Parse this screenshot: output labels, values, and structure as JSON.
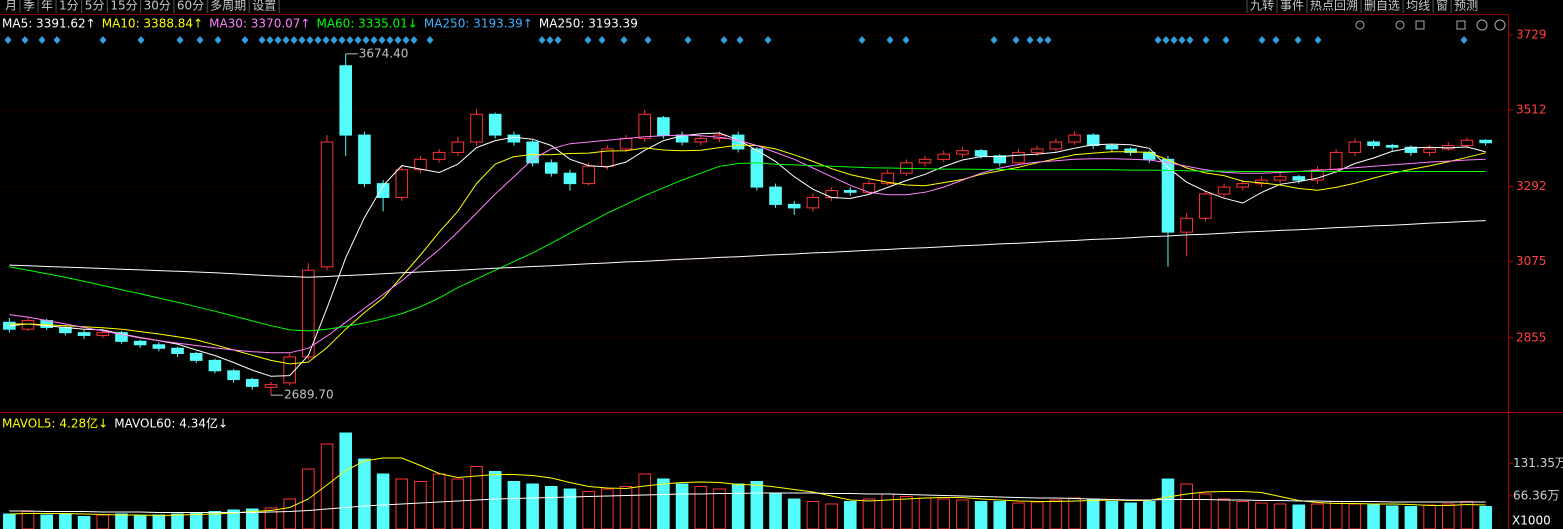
{
  "chart_data": {
    "type": "candlestick",
    "toolbar_left": [
      "月",
      "季",
      "年",
      "1分",
      "5分",
      "15分",
      "30分",
      "60分",
      "多周期",
      "设置"
    ],
    "toolbar_right": [
      "九转",
      "事件",
      "热点回溯",
      "删自选",
      "均线",
      "窗",
      "预测"
    ],
    "legend": [
      {
        "text": "MA5: 3391.62↑",
        "color": "#ffffff"
      },
      {
        "text": "MA10: 3388.84↑",
        "color": "#ffff00"
      },
      {
        "text": "MA30: 3370.07↑",
        "color": "#ff80ff"
      },
      {
        "text": "MA60: 3335.01↓",
        "color": "#00ff00"
      },
      {
        "text": "MA250: 3193.39↑",
        "color": "#40b0ff"
      },
      {
        "text": "MA250: 3193.39",
        "color": "#ffffff"
      }
    ],
    "up_color": "#ff3232",
    "down_color": "#54fcfc",
    "ylim": [
      2644,
      3772
    ],
    "yticks": [
      3729,
      3512,
      3292,
      3075,
      2855
    ],
    "grid": true,
    "annotations": [
      "3674.40",
      "2689.70"
    ],
    "open": [
      2900,
      2880,
      2905,
      2885,
      2870,
      2862,
      2870,
      2845,
      2835,
      2825,
      2810,
      2790,
      2760,
      2735,
      2712,
      2725,
      2800,
      3060,
      3640,
      3440,
      3300,
      3260,
      3340,
      3370,
      3390,
      3420,
      3500,
      3440,
      3420,
      3360,
      3330,
      3300,
      3350,
      3400,
      3430,
      3490,
      3440,
      3420,
      3430,
      3440,
      3400,
      3290,
      3240,
      3230,
      3260,
      3280,
      3275,
      3300,
      3330,
      3360,
      3370,
      3385,
      3395,
      3380,
      3360,
      3390,
      3400,
      3420,
      3440,
      3410,
      3400,
      3390,
      3370,
      3160,
      3200,
      3270,
      3290,
      3300,
      3310,
      3320,
      3310,
      3340,
      3390,
      3420,
      3410,
      3405,
      3390,
      3400,
      3410,
      3425
    ],
    "close": [
      2880,
      2905,
      2885,
      2870,
      2862,
      2870,
      2845,
      2835,
      2825,
      2810,
      2790,
      2760,
      2735,
      2715,
      2720,
      2800,
      3050,
      3420,
      3440,
      3300,
      3260,
      3340,
      3370,
      3390,
      3420,
      3500,
      3440,
      3420,
      3360,
      3330,
      3300,
      3350,
      3400,
      3430,
      3500,
      3440,
      3420,
      3430,
      3440,
      3400,
      3290,
      3240,
      3230,
      3260,
      3280,
      3275,
      3300,
      3330,
      3360,
      3370,
      3385,
      3395,
      3380,
      3360,
      3390,
      3400,
      3420,
      3440,
      3410,
      3400,
      3390,
      3370,
      3160,
      3200,
      3270,
      3290,
      3300,
      3310,
      3320,
      3310,
      3340,
      3390,
      3420,
      3410,
      3405,
      3390,
      3400,
      3410,
      3425,
      3418
    ],
    "high": [
      2912,
      2915,
      2910,
      2892,
      2878,
      2880,
      2875,
      2850,
      2842,
      2830,
      2815,
      2795,
      2765,
      2740,
      2728,
      2810,
      3070,
      3440,
      3674.4,
      3450,
      3310,
      3350,
      3380,
      3400,
      3435,
      3515,
      3505,
      3450,
      3425,
      3370,
      3340,
      3360,
      3410,
      3440,
      3512,
      3495,
      3450,
      3440,
      3450,
      3450,
      3405,
      3300,
      3250,
      3270,
      3290,
      3290,
      3310,
      3340,
      3370,
      3380,
      3395,
      3405,
      3400,
      3385,
      3400,
      3410,
      3430,
      3450,
      3445,
      3415,
      3405,
      3395,
      3380,
      3215,
      3280,
      3300,
      3310,
      3320,
      3330,
      3325,
      3350,
      3400,
      3430,
      3425,
      3415,
      3410,
      3410,
      3420,
      3432,
      3428
    ],
    "low": [
      2870,
      2875,
      2878,
      2862,
      2852,
      2855,
      2838,
      2826,
      2816,
      2800,
      2782,
      2752,
      2726,
      2705,
      2689.7,
      2718,
      2792,
      3050,
      3380,
      3290,
      3220,
      3250,
      3330,
      3360,
      3380,
      3410,
      3430,
      3410,
      3350,
      3320,
      3280,
      3295,
      3340,
      3390,
      3420,
      3430,
      3410,
      3410,
      3420,
      3390,
      3280,
      3230,
      3210,
      3220,
      3250,
      3265,
      3270,
      3295,
      3322,
      3350,
      3362,
      3375,
      3372,
      3350,
      3355,
      3380,
      3392,
      3412,
      3400,
      3390,
      3380,
      3360,
      3060,
      3090,
      3190,
      3260,
      3280,
      3290,
      3300,
      3300,
      3300,
      3330,
      3380,
      3400,
      3395,
      3380,
      3380,
      3395,
      3402,
      3410
    ],
    "ma_lines": [
      {
        "color": "#ffffff",
        "values": [
          2890,
          2895,
          2890,
          2885,
          2880,
          2878,
          2866,
          2856,
          2847,
          2837,
          2820,
          2804,
          2784,
          2762,
          2744,
          2746,
          2804,
          2941,
          3086,
          3202,
          3294,
          3352,
          3342,
          3332,
          3356,
          3404,
          3424,
          3434,
          3428,
          3410,
          3370,
          3352,
          3348,
          3362,
          3396,
          3424,
          3438,
          3444,
          3446,
          3426,
          3396,
          3364,
          3320,
          3284,
          3260,
          3257,
          3269,
          3289,
          3309,
          3327,
          3349,
          3368,
          3378,
          3378,
          3382,
          3385,
          3390,
          3402,
          3412,
          3414,
          3412,
          3402,
          3346,
          3304,
          3278,
          3258,
          3244,
          3274,
          3298,
          3306,
          3316,
          3334,
          3358,
          3374,
          3393,
          3403,
          3405,
          3403,
          3406,
          3391.62
        ]
      },
      {
        "color": "#ffff00",
        "values": [
          2895,
          2895,
          2893,
          2890,
          2887,
          2884,
          2880,
          2873,
          2866,
          2858,
          2849,
          2835,
          2820,
          2805,
          2790,
          2780,
          2785,
          2827,
          2880,
          2928,
          2970,
          3032,
          3094,
          3160,
          3220,
          3300,
          3356,
          3378,
          3384,
          3383,
          3387,
          3388,
          3394,
          3395,
          3403,
          3397,
          3395,
          3396,
          3404,
          3411,
          3410,
          3400,
          3383,
          3364,
          3343,
          3326,
          3314,
          3304,
          3296,
          3294,
          3303,
          3312,
          3327,
          3337,
          3347,
          3360,
          3372,
          3383,
          3388,
          3392,
          3392,
          3390,
          3368,
          3345,
          3331,
          3323,
          3307,
          3302,
          3296,
          3286,
          3281,
          3289,
          3301,
          3316,
          3330,
          3341,
          3351,
          3363,
          3376,
          3388.84
        ]
      },
      {
        "color": "#ff80ff",
        "values": [
          2922,
          2915,
          2905,
          2895,
          2885,
          2875,
          2865,
          2855,
          2847,
          2840,
          2833,
          2826,
          2820,
          2815,
          2812,
          2812,
          2825,
          2860,
          2900,
          2940,
          2980,
          3020,
          3065,
          3110,
          3160,
          3215,
          3270,
          3320,
          3370,
          3400,
          3415,
          3420,
          3425,
          3430,
          3435,
          3438,
          3440,
          3438,
          3434,
          3425,
          3410,
          3390,
          3370,
          3345,
          3320,
          3295,
          3275,
          3268,
          3268,
          3275,
          3290,
          3310,
          3330,
          3345,
          3355,
          3362,
          3366,
          3370,
          3372,
          3372,
          3370,
          3368,
          3360,
          3350,
          3340,
          3333,
          3330,
          3330,
          3332,
          3335,
          3338,
          3342,
          3346,
          3350,
          3354,
          3358,
          3362,
          3365,
          3368,
          3370.07
        ]
      },
      {
        "color": "#00ff00",
        "values": [
          3060,
          3050,
          3040,
          3030,
          3018,
          3006,
          2994,
          2982,
          2970,
          2958,
          2945,
          2932,
          2918,
          2904,
          2890,
          2878,
          2875,
          2880,
          2888,
          2898,
          2910,
          2925,
          2945,
          2970,
          3000,
          3025,
          3050,
          3075,
          3100,
          3128,
          3157,
          3186,
          3215,
          3240,
          3265,
          3288,
          3310,
          3330,
          3350,
          3358,
          3360,
          3356,
          3354,
          3352,
          3350,
          3348,
          3346,
          3345,
          3344,
          3343,
          3342,
          3342,
          3341,
          3341,
          3340,
          3340,
          3340,
          3340,
          3340,
          3340,
          3339,
          3339,
          3338,
          3337,
          3336,
          3336,
          3335,
          3335,
          3335,
          3335,
          3335,
          3335,
          3335,
          3335,
          3335,
          3335,
          3335,
          3335,
          3335,
          3335.01
        ]
      },
      {
        "color": "#ffffff",
        "values": [
          3065,
          3063,
          3061,
          3059,
          3057,
          3055,
          3053,
          3051,
          3049,
          3047,
          3045,
          3043,
          3040,
          3037,
          3034,
          3032,
          3030,
          3032,
          3035,
          3037,
          3040,
          3043,
          3045,
          3048,
          3050,
          3053,
          3056,
          3058,
          3061,
          3063,
          3066,
          3069,
          3071,
          3074,
          3076,
          3079,
          3082,
          3084,
          3087,
          3089,
          3092,
          3095,
          3097,
          3100,
          3102,
          3105,
          3108,
          3110,
          3113,
          3115,
          3118,
          3121,
          3123,
          3126,
          3128,
          3131,
          3134,
          3136,
          3139,
          3141,
          3144,
          3147,
          3149,
          3152,
          3154,
          3157,
          3160,
          3162,
          3165,
          3167,
          3170,
          3173,
          3175,
          3178,
          3180,
          3183,
          3186,
          3188,
          3191,
          3193.39
        ]
      }
    ],
    "volume": {
      "legend": [
        {
          "text": "MAVOL5: 4.28亿↓",
          "color": "#ffff00"
        },
        {
          "text": "MAVOL60: 4.34亿↓",
          "color": "#ffffff"
        }
      ],
      "ylim": [
        0,
        228
      ],
      "yticks": [
        {
          "value": 131.35,
          "label": "131.35万"
        },
        {
          "value": 66.36,
          "label": "66.36万"
        }
      ],
      "multiplier_label": "X1000",
      "values": [
        30,
        35,
        28,
        30,
        25,
        28,
        30,
        26,
        28,
        30,
        32,
        35,
        38,
        40,
        42,
        60,
        120,
        170,
        192,
        140,
        110,
        100,
        95,
        110,
        100,
        125,
        115,
        95,
        90,
        85,
        80,
        75,
        80,
        85,
        110,
        100,
        90,
        85,
        80,
        90,
        95,
        70,
        60,
        55,
        50,
        55,
        60,
        70,
        65,
        62,
        60,
        58,
        55,
        55,
        52,
        54,
        58,
        62,
        60,
        55,
        52,
        55,
        100,
        90,
        70,
        60,
        55,
        52,
        50,
        48,
        50,
        55,
        50,
        48,
        46,
        45,
        48,
        50,
        55,
        45
      ],
      "ma_lines": [
        {
          "color": "#ffff00",
          "values": [
            30,
            31,
            31,
            31,
            30,
            29,
            28,
            28,
            27,
            28,
            29,
            30,
            32,
            35,
            37,
            43,
            60,
            88,
            117,
            136,
            142,
            142,
            127,
            111,
            103,
            106,
            109,
            109,
            107,
            102,
            93,
            85,
            82,
            81,
            86,
            90,
            93,
            94,
            93,
            89,
            88,
            84,
            79,
            74,
            66,
            58,
            56,
            58,
            60,
            62,
            63,
            63,
            60,
            58,
            56,
            55,
            55,
            56,
            57,
            58,
            57,
            57,
            64,
            70,
            74,
            75,
            75,
            73,
            65,
            57,
            53,
            51,
            51,
            50,
            50,
            49,
            47,
            47,
            49,
            48
          ]
        },
        {
          "color": "#ffffff",
          "values": [
            36,
            36,
            35,
            35,
            35,
            34,
            34,
            34,
            33,
            33,
            33,
            33,
            33,
            33,
            34,
            35,
            37,
            40,
            43,
            46,
            48,
            50,
            52,
            54,
            56,
            58,
            60,
            61,
            62,
            63,
            64,
            65,
            66,
            67,
            68,
            69,
            70,
            70,
            71,
            71,
            72,
            72,
            72,
            72,
            71,
            71,
            70,
            70,
            69,
            68,
            67,
            66,
            65,
            64,
            63,
            62,
            62,
            61,
            60,
            59,
            58,
            58,
            59,
            59,
            59,
            58,
            58,
            57,
            57,
            56,
            56,
            55,
            55,
            55,
            54,
            54,
            54,
            54,
            54,
            54
          ]
        }
      ]
    }
  }
}
